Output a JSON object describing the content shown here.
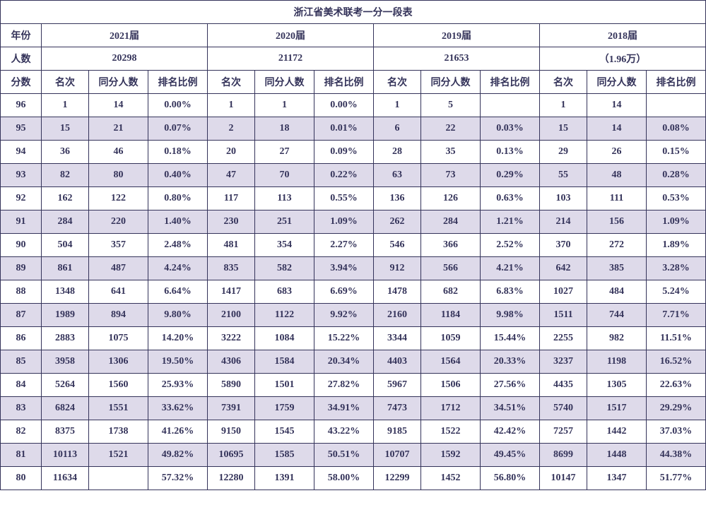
{
  "title": "浙江省美术联考一分一段表",
  "headers": {
    "year_label": "年份",
    "count_label": "人数",
    "score_label": "分数",
    "rank_label": "名次",
    "same_label": "同分人数",
    "pct_label": "排名比例"
  },
  "years": [
    {
      "label": "2021届",
      "count": "20298"
    },
    {
      "label": "2020届",
      "count": "21172"
    },
    {
      "label": "2019届",
      "count": "21653"
    },
    {
      "label": "2018届",
      "count": "（1.96万）"
    }
  ],
  "colors": {
    "border": "#34335a",
    "text": "#34335a",
    "row_alt_bg": "#dedaea",
    "row_bg": "#ffffff"
  },
  "rows": [
    {
      "score": "96",
      "y": [
        {
          "rank": "1",
          "same": "14",
          "pct": "0.00%"
        },
        {
          "rank": "1",
          "same": "1",
          "pct": "0.00%"
        },
        {
          "rank": "1",
          "same": "5",
          "pct": ""
        },
        {
          "rank": "1",
          "same": "14",
          "pct": ""
        }
      ]
    },
    {
      "score": "95",
      "y": [
        {
          "rank": "15",
          "same": "21",
          "pct": "0.07%"
        },
        {
          "rank": "2",
          "same": "18",
          "pct": "0.01%"
        },
        {
          "rank": "6",
          "same": "22",
          "pct": "0.03%"
        },
        {
          "rank": "15",
          "same": "14",
          "pct": "0.08%"
        }
      ]
    },
    {
      "score": "94",
      "y": [
        {
          "rank": "36",
          "same": "46",
          "pct": "0.18%"
        },
        {
          "rank": "20",
          "same": "27",
          "pct": "0.09%"
        },
        {
          "rank": "28",
          "same": "35",
          "pct": "0.13%"
        },
        {
          "rank": "29",
          "same": "26",
          "pct": "0.15%"
        }
      ]
    },
    {
      "score": "93",
      "y": [
        {
          "rank": "82",
          "same": "80",
          "pct": "0.40%"
        },
        {
          "rank": "47",
          "same": "70",
          "pct": "0.22%"
        },
        {
          "rank": "63",
          "same": "73",
          "pct": "0.29%"
        },
        {
          "rank": "55",
          "same": "48",
          "pct": "0.28%"
        }
      ]
    },
    {
      "score": "92",
      "y": [
        {
          "rank": "162",
          "same": "122",
          "pct": "0.80%"
        },
        {
          "rank": "117",
          "same": "113",
          "pct": "0.55%"
        },
        {
          "rank": "136",
          "same": "126",
          "pct": "0.63%"
        },
        {
          "rank": "103",
          "same": "111",
          "pct": "0.53%"
        }
      ]
    },
    {
      "score": "91",
      "y": [
        {
          "rank": "284",
          "same": "220",
          "pct": "1.40%"
        },
        {
          "rank": "230",
          "same": "251",
          "pct": "1.09%"
        },
        {
          "rank": "262",
          "same": "284",
          "pct": "1.21%"
        },
        {
          "rank": "214",
          "same": "156",
          "pct": "1.09%"
        }
      ]
    },
    {
      "score": "90",
      "y": [
        {
          "rank": "504",
          "same": "357",
          "pct": "2.48%"
        },
        {
          "rank": "481",
          "same": "354",
          "pct": "2.27%"
        },
        {
          "rank": "546",
          "same": "366",
          "pct": "2.52%"
        },
        {
          "rank": "370",
          "same": "272",
          "pct": "1.89%"
        }
      ]
    },
    {
      "score": "89",
      "y": [
        {
          "rank": "861",
          "same": "487",
          "pct": "4.24%"
        },
        {
          "rank": "835",
          "same": "582",
          "pct": "3.94%"
        },
        {
          "rank": "912",
          "same": "566",
          "pct": "4.21%"
        },
        {
          "rank": "642",
          "same": "385",
          "pct": "3.28%"
        }
      ]
    },
    {
      "score": "88",
      "y": [
        {
          "rank": "1348",
          "same": "641",
          "pct": "6.64%"
        },
        {
          "rank": "1417",
          "same": "683",
          "pct": "6.69%"
        },
        {
          "rank": "1478",
          "same": "682",
          "pct": "6.83%"
        },
        {
          "rank": "1027",
          "same": "484",
          "pct": "5.24%"
        }
      ]
    },
    {
      "score": "87",
      "y": [
        {
          "rank": "1989",
          "same": "894",
          "pct": "9.80%"
        },
        {
          "rank": "2100",
          "same": "1122",
          "pct": "9.92%"
        },
        {
          "rank": "2160",
          "same": "1184",
          "pct": "9.98%"
        },
        {
          "rank": "1511",
          "same": "744",
          "pct": "7.71%"
        }
      ]
    },
    {
      "score": "86",
      "y": [
        {
          "rank": "2883",
          "same": "1075",
          "pct": "14.20%"
        },
        {
          "rank": "3222",
          "same": "1084",
          "pct": "15.22%"
        },
        {
          "rank": "3344",
          "same": "1059",
          "pct": "15.44%"
        },
        {
          "rank": "2255",
          "same": "982",
          "pct": "11.51%"
        }
      ]
    },
    {
      "score": "85",
      "y": [
        {
          "rank": "3958",
          "same": "1306",
          "pct": "19.50%"
        },
        {
          "rank": "4306",
          "same": "1584",
          "pct": "20.34%"
        },
        {
          "rank": "4403",
          "same": "1564",
          "pct": "20.33%"
        },
        {
          "rank": "3237",
          "same": "1198",
          "pct": "16.52%"
        }
      ]
    },
    {
      "score": "84",
      "y": [
        {
          "rank": "5264",
          "same": "1560",
          "pct": "25.93%"
        },
        {
          "rank": "5890",
          "same": "1501",
          "pct": "27.82%"
        },
        {
          "rank": "5967",
          "same": "1506",
          "pct": "27.56%"
        },
        {
          "rank": "4435",
          "same": "1305",
          "pct": "22.63%"
        }
      ]
    },
    {
      "score": "83",
      "y": [
        {
          "rank": "6824",
          "same": "1551",
          "pct": "33.62%"
        },
        {
          "rank": "7391",
          "same": "1759",
          "pct": "34.91%"
        },
        {
          "rank": "7473",
          "same": "1712",
          "pct": "34.51%"
        },
        {
          "rank": "5740",
          "same": "1517",
          "pct": "29.29%"
        }
      ]
    },
    {
      "score": "82",
      "y": [
        {
          "rank": "8375",
          "same": "1738",
          "pct": "41.26%"
        },
        {
          "rank": "9150",
          "same": "1545",
          "pct": "43.22%"
        },
        {
          "rank": "9185",
          "same": "1522",
          "pct": "42.42%"
        },
        {
          "rank": "7257",
          "same": "1442",
          "pct": "37.03%"
        }
      ]
    },
    {
      "score": "81",
      "y": [
        {
          "rank": "10113",
          "same": "1521",
          "pct": "49.82%"
        },
        {
          "rank": "10695",
          "same": "1585",
          "pct": "50.51%"
        },
        {
          "rank": "10707",
          "same": "1592",
          "pct": "49.45%"
        },
        {
          "rank": "8699",
          "same": "1448",
          "pct": "44.38%"
        }
      ]
    },
    {
      "score": "80",
      "y": [
        {
          "rank": "11634",
          "same": "",
          "pct": "57.32%"
        },
        {
          "rank": "12280",
          "same": "1391",
          "pct": "58.00%"
        },
        {
          "rank": "12299",
          "same": "1452",
          "pct": "56.80%"
        },
        {
          "rank": "10147",
          "same": "1347",
          "pct": "51.77%"
        }
      ]
    }
  ]
}
